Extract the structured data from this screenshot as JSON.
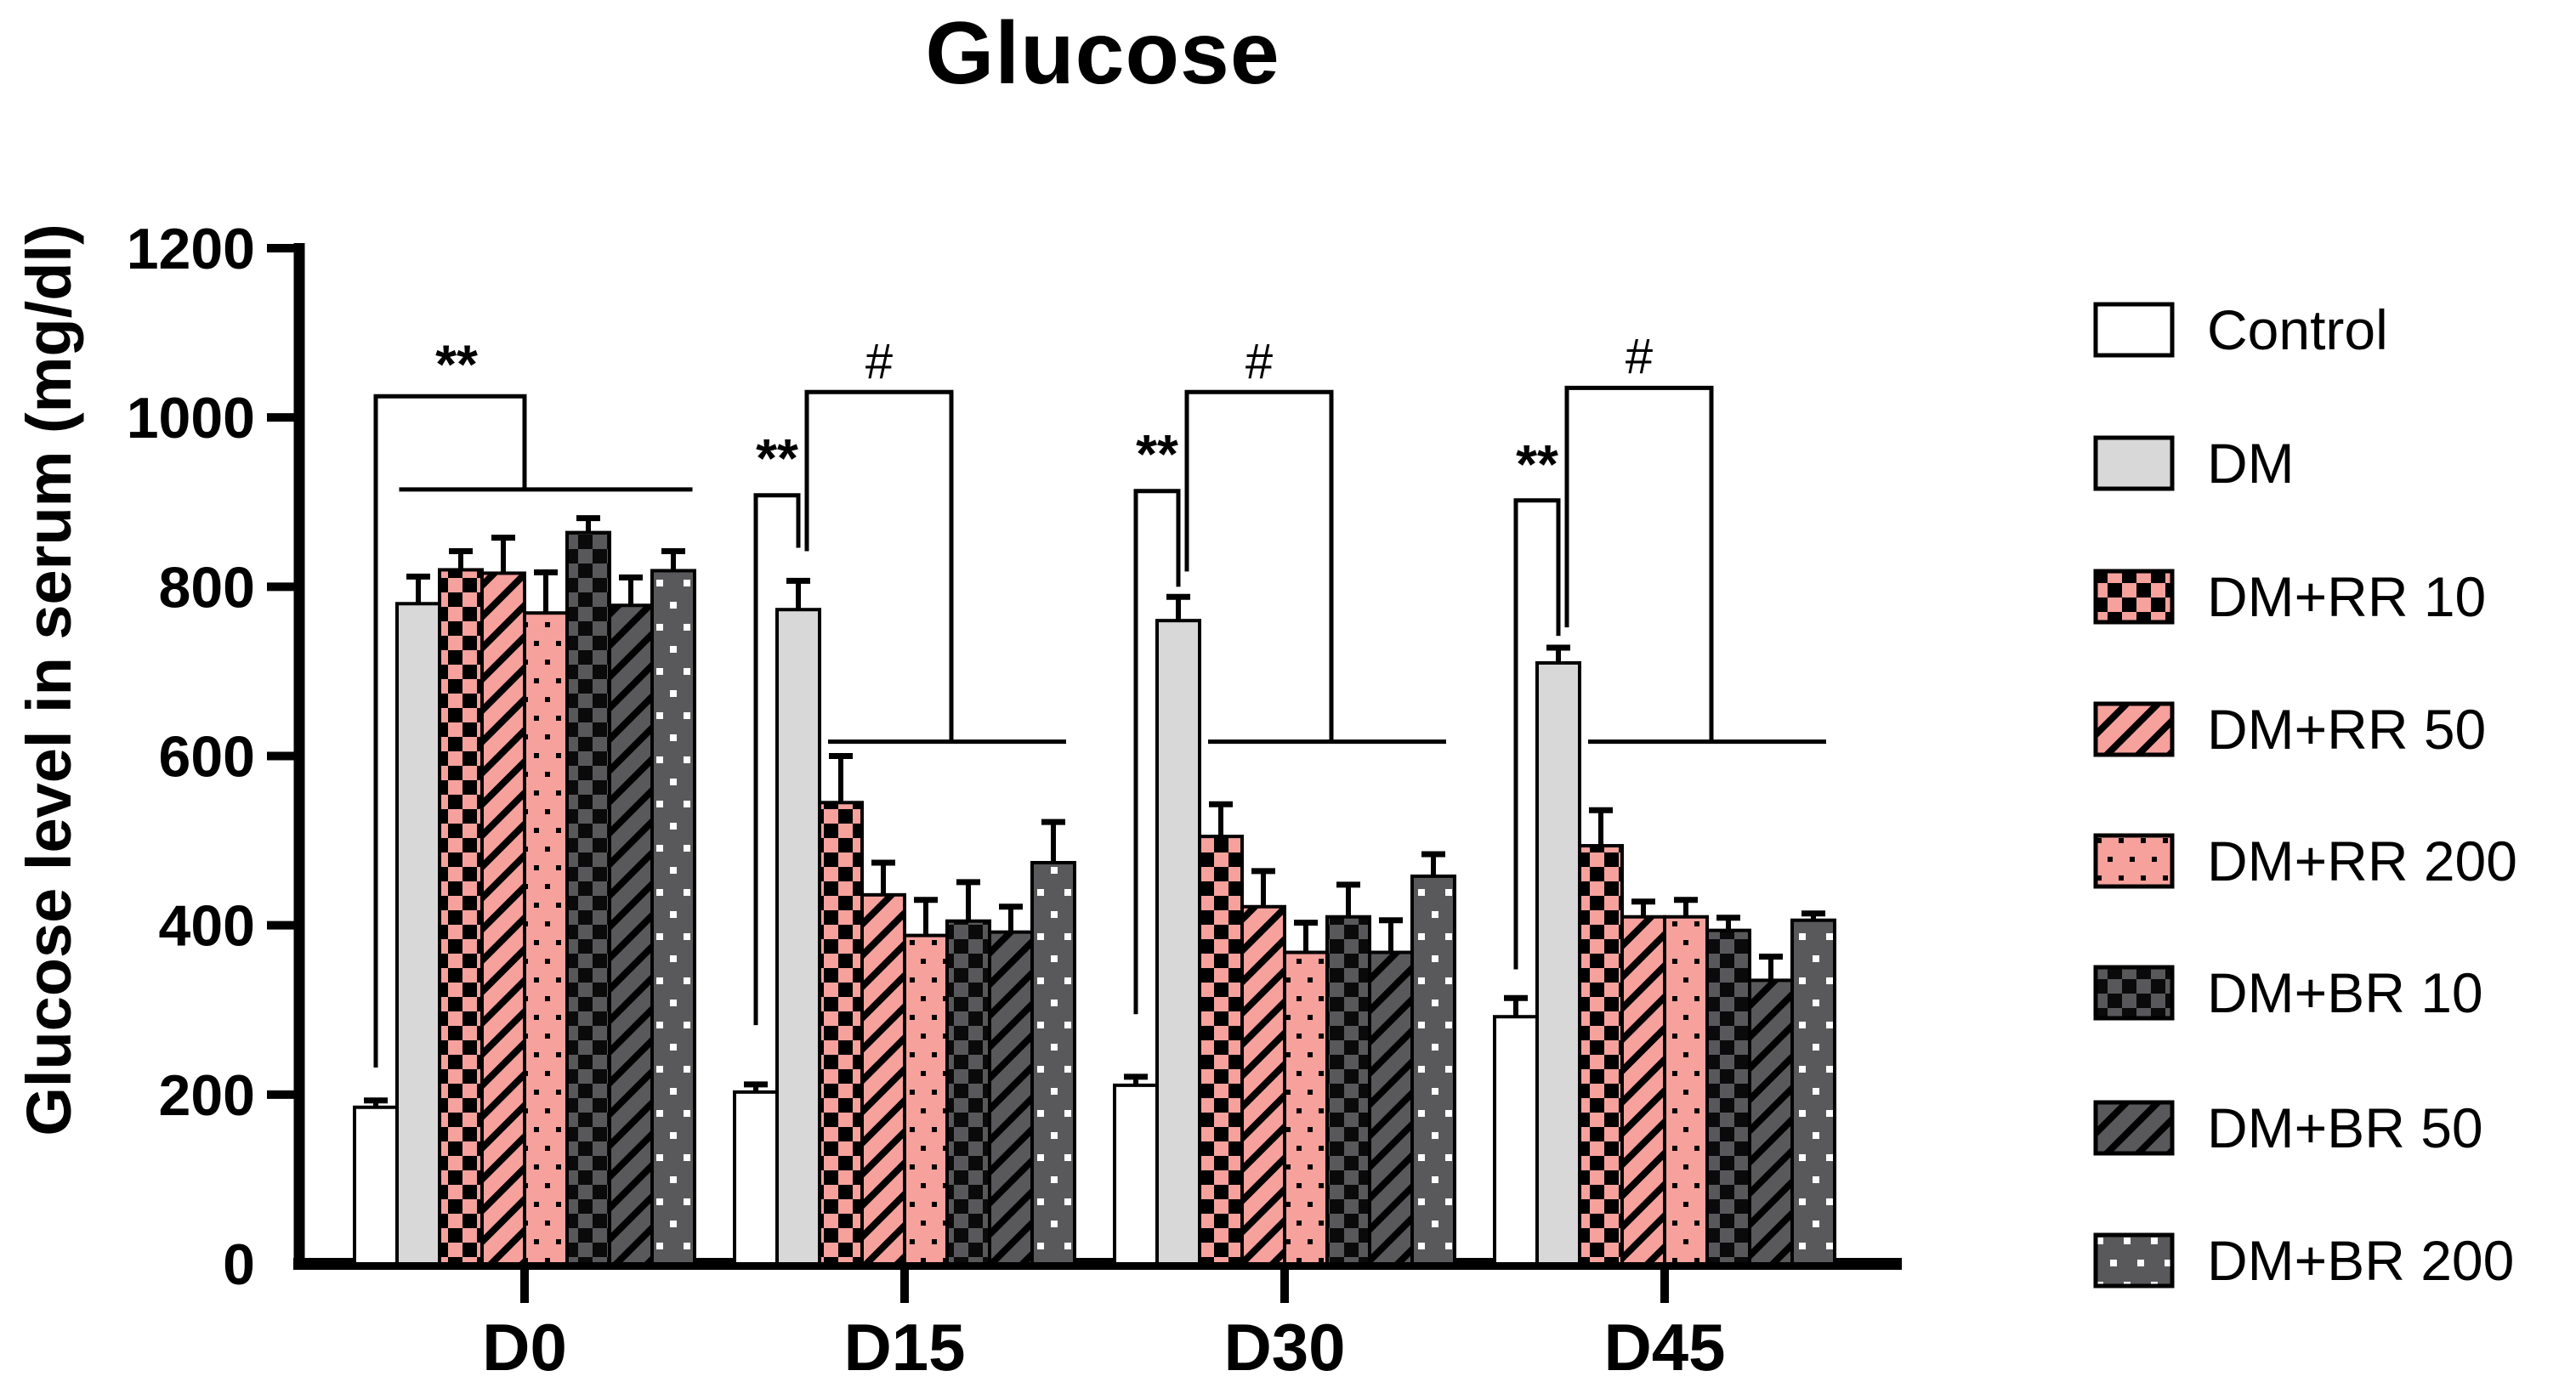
{
  "figure": {
    "kind": "grouped-bar-chart"
  },
  "chart_data": {
    "type": "bar",
    "title": "Glucose",
    "xlabel": "",
    "ylabel": "Glucose level in serum (mg/dl)",
    "ylim": [
      0,
      1200
    ],
    "yticks": [
      0,
      200,
      400,
      600,
      800,
      1000,
      1200
    ],
    "grid": false,
    "legend_position": "right",
    "categories": [
      "D0",
      "D15",
      "D30",
      "D45"
    ],
    "series": [
      {
        "name": "Control",
        "fill": "#FFFFFF",
        "pattern": "solid",
        "pattern_color": null,
        "values": [
          185,
          203,
          211,
          292
        ],
        "errors": [
          8,
          9,
          10,
          22
        ]
      },
      {
        "name": "DM",
        "fill": "#D8D8D8",
        "pattern": "solid",
        "pattern_color": null,
        "values": [
          780,
          773,
          760,
          710
        ],
        "errors": [
          32,
          34,
          28,
          18
        ]
      },
      {
        "name": "DM+RR 10",
        "fill": "#F6A19C",
        "pattern": "checker",
        "pattern_color": "#000000",
        "values": [
          820,
          545,
          505,
          494
        ],
        "errors": [
          22,
          55,
          38,
          42
        ]
      },
      {
        "name": "DM+RR 50",
        "fill": "#F6A19C",
        "pattern": "diagonal",
        "pattern_color": "#000000",
        "values": [
          816,
          436,
          422,
          410
        ],
        "errors": [
          42,
          38,
          42,
          18
        ]
      },
      {
        "name": "DM+RR 200",
        "fill": "#F6A19C",
        "pattern": "dots",
        "pattern_color": "#000000",
        "values": [
          769,
          388,
          368,
          410
        ],
        "errors": [
          48,
          42,
          35,
          20
        ]
      },
      {
        "name": "DM+BR 10",
        "fill": "#0A0A0A",
        "pattern": "checker",
        "pattern_color": "#58585A",
        "values": [
          864,
          405,
          410,
          394
        ],
        "errors": [
          17,
          46,
          38,
          15
        ]
      },
      {
        "name": "DM+BR 50",
        "fill": "#59595B",
        "pattern": "diagonal",
        "pattern_color": "#000000",
        "values": [
          778,
          392,
          368,
          335
        ],
        "errors": [
          33,
          30,
          38,
          28
        ]
      },
      {
        "name": "DM+BR 200",
        "fill": "#59595B",
        "pattern": "dots",
        "pattern_color": "#FFFFFF",
        "values": [
          819,
          474,
          458,
          406
        ],
        "errors": [
          23,
          48,
          26,
          8
        ]
      }
    ],
    "annotations": [
      {
        "category": "D0",
        "label": "**",
        "label_k": 2.4,
        "label_v": 1058,
        "lines": [
          [
            [
              0.5,
              232
            ],
            [
              0.5,
              1025
            ],
            [
              4.0,
              1025
            ],
            [
              4.0,
              915
            ]
          ],
          [
            [
              1.05,
              915
            ],
            [
              7.95,
              915
            ]
          ]
        ]
      },
      {
        "category": "D15",
        "label": "**",
        "label_k": 1.0,
        "label_v": 947,
        "lines": [
          [
            [
              0.5,
              282
            ],
            [
              0.5,
              908
            ],
            [
              1.5,
              908
            ],
            [
              1.5,
              846
            ]
          ]
        ]
      },
      {
        "category": "D15",
        "label": "#",
        "label_k": 3.4,
        "label_v": 1062,
        "lines": [
          [
            [
              1.7,
              842
            ],
            [
              1.7,
              1030
            ],
            [
              5.1,
              1030
            ],
            [
              5.1,
              617
            ]
          ],
          [
            [
              2.2,
              617
            ],
            [
              7.8,
              617
            ]
          ]
        ]
      },
      {
        "category": "D30",
        "label": "**",
        "label_k": 1.0,
        "label_v": 952,
        "lines": [
          [
            [
              0.5,
              295
            ],
            [
              0.5,
              913
            ],
            [
              1.5,
              913
            ],
            [
              1.5,
              800
            ]
          ]
        ]
      },
      {
        "category": "D30",
        "label": "#",
        "label_k": 3.4,
        "label_v": 1062,
        "lines": [
          [
            [
              1.7,
              818
            ],
            [
              1.7,
              1030
            ],
            [
              5.1,
              1030
            ],
            [
              5.1,
              617
            ]
          ],
          [
            [
              2.2,
              617
            ],
            [
              7.8,
              617
            ]
          ]
        ]
      },
      {
        "category": "D45",
        "label": "**",
        "label_k": 1.0,
        "label_v": 940,
        "lines": [
          [
            [
              0.5,
              348
            ],
            [
              0.5,
              902
            ],
            [
              1.5,
              902
            ],
            [
              1.5,
              742
            ]
          ]
        ]
      },
      {
        "category": "D45",
        "label": "#",
        "label_k": 3.4,
        "label_v": 1068,
        "lines": [
          [
            [
              1.7,
              752
            ],
            [
              1.7,
              1035
            ],
            [
              5.1,
              1035
            ],
            [
              5.1,
              617
            ]
          ],
          [
            [
              2.2,
              617
            ],
            [
              7.8,
              617
            ]
          ]
        ]
      }
    ],
    "colors": {
      "axis": "#000000",
      "pink": "#F6A19C",
      "light_gray": "#D8D8D8",
      "dark_gray": "#59595B",
      "black": "#0A0A0A",
      "background": "#FFFFFF"
    }
  }
}
